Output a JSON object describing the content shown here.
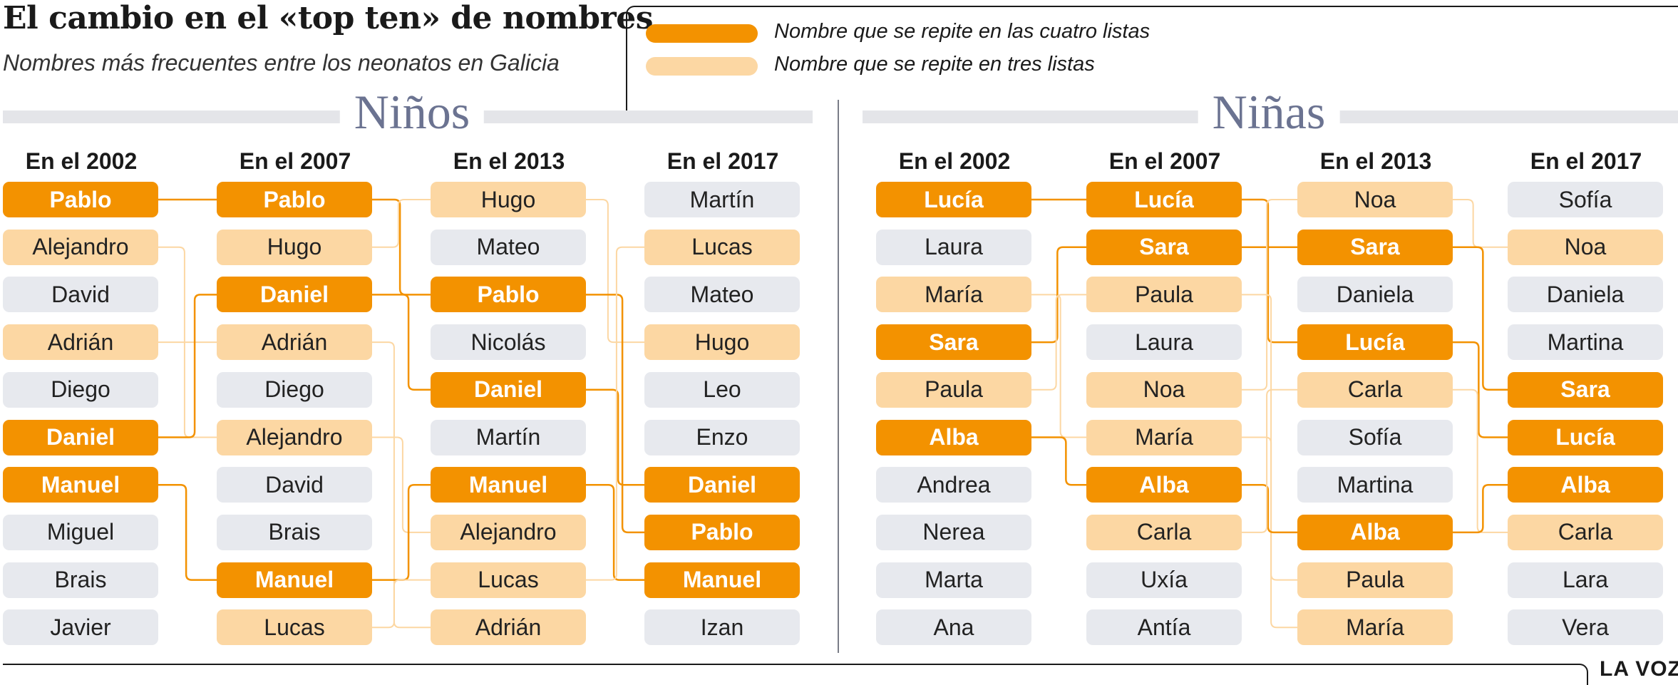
{
  "title": "El cambio en el «top ten» de nombres",
  "subtitle": "Nombres más frecuentes entre los neonatos en Galicia",
  "legend": {
    "four_lists": {
      "label": "Nombre que se repite en las cuatro listas",
      "color": "#f39200"
    },
    "three_lists": {
      "label": "Nombre que se repite en tres listas",
      "color": "#fcd7a3"
    },
    "other_color": "#e7e9ee",
    "connector_strong": "#f39200",
    "connector_light": "#fcd7a3"
  },
  "brand": "LA VOZ",
  "sections": [
    {
      "title": "Niños",
      "columns": [
        {
          "header": "En el 2002",
          "names": [
            "Pablo",
            "Alejandro",
            "David",
            "Adrián",
            "Diego",
            "Daniel",
            "Manuel",
            "Miguel",
            "Brais",
            "Javier"
          ]
        },
        {
          "header": "En el 2007",
          "names": [
            "Pablo",
            "Hugo",
            "Daniel",
            "Adrián",
            "Diego",
            "Alejandro",
            "David",
            "Brais",
            "Manuel",
            "Lucas"
          ]
        },
        {
          "header": "En el 2013",
          "names": [
            "Hugo",
            "Mateo",
            "Pablo",
            "Nicolás",
            "Daniel",
            "Martín",
            "Manuel",
            "Alejandro",
            "Lucas",
            "Adrián"
          ]
        },
        {
          "header": "En el 2017",
          "names": [
            "Martín",
            "Lucas",
            "Mateo",
            "Hugo",
            "Leo",
            "Enzo",
            "Daniel",
            "Pablo",
            "Manuel",
            "Izan"
          ]
        }
      ]
    },
    {
      "title": "Niñas",
      "columns": [
        {
          "header": "En el 2002",
          "names": [
            "Lucía",
            "Laura",
            "María",
            "Sara",
            "Paula",
            "Alba",
            "Andrea",
            "Nerea",
            "Marta",
            "Ana"
          ]
        },
        {
          "header": "En el 2007",
          "names": [
            "Lucía",
            "Sara",
            "Paula",
            "Laura",
            "Noa",
            "María",
            "Alba",
            "Carla",
            "Uxía",
            "Antía"
          ]
        },
        {
          "header": "En el 2013",
          "names": [
            "Noa",
            "Sara",
            "Daniela",
            "Lucía",
            "Carla",
            "Sofía",
            "Martina",
            "Alba",
            "Paula",
            "María"
          ]
        },
        {
          "header": "En el 2017",
          "names": [
            "Sofía",
            "Noa",
            "Daniela",
            "Martina",
            "Sara",
            "Lucía",
            "Alba",
            "Carla",
            "Lara",
            "Vera"
          ]
        }
      ]
    }
  ]
}
